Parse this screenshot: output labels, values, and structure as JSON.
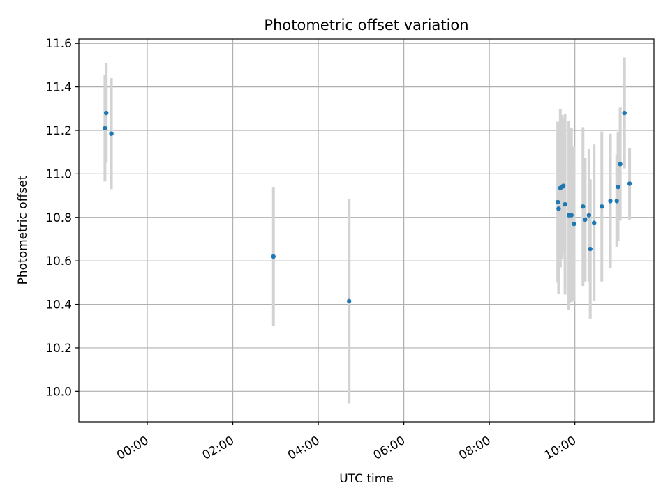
{
  "chart_data": {
    "type": "scatter",
    "title": "Photometric offset variation",
    "xlabel": "UTC time",
    "ylabel": "Photometric offset",
    "xlim_hours": [
      -1.6,
      11.85
    ],
    "ylim": [
      9.86,
      11.62
    ],
    "x_ticks": [
      {
        "hour": 0,
        "label": "00:00"
      },
      {
        "hour": 2,
        "label": "02:00"
      },
      {
        "hour": 4,
        "label": "04:00"
      },
      {
        "hour": 6,
        "label": "06:00"
      },
      {
        "hour": 8,
        "label": "08:00"
      },
      {
        "hour": 10,
        "label": "10:00"
      }
    ],
    "y_ticks": [
      {
        "value": 10.0,
        "label": "10.0"
      },
      {
        "value": 10.2,
        "label": "10.2"
      },
      {
        "value": 10.4,
        "label": "10.4"
      },
      {
        "value": 10.6,
        "label": "10.6"
      },
      {
        "value": 10.8,
        "label": "10.8"
      },
      {
        "value": 11.0,
        "label": "11.0"
      },
      {
        "value": 11.2,
        "label": "11.2"
      },
      {
        "value": 11.4,
        "label": "11.4"
      },
      {
        "value": 11.6,
        "label": "11.6"
      }
    ],
    "grid": true,
    "point_color": "#1f77b4",
    "errorbar_color": "#d3d3d3",
    "points": [
      {
        "x": -0.99,
        "y": 11.21,
        "err": 0.245
      },
      {
        "x": -0.96,
        "y": 11.28,
        "err": 0.23
      },
      {
        "x": -0.84,
        "y": 11.185,
        "err": 0.255
      },
      {
        "x": 2.95,
        "y": 10.62,
        "err": 0.32
      },
      {
        "x": 4.72,
        "y": 10.415,
        "err": 0.47
      },
      {
        "x": 9.6,
        "y": 10.87,
        "err": 0.37
      },
      {
        "x": 9.62,
        "y": 10.84,
        "err": 0.39
      },
      {
        "x": 9.66,
        "y": 10.935,
        "err": 0.365
      },
      {
        "x": 9.7,
        "y": 10.94,
        "err": 0.33
      },
      {
        "x": 9.73,
        "y": 10.945,
        "err": 0.31
      },
      {
        "x": 9.77,
        "y": 10.86,
        "err": 0.415
      },
      {
        "x": 9.86,
        "y": 10.81,
        "err": 0.435
      },
      {
        "x": 9.92,
        "y": 10.81,
        "err": 0.4
      },
      {
        "x": 9.98,
        "y": 10.77,
        "err": 0.355
      },
      {
        "x": 10.19,
        "y": 10.85,
        "err": 0.365
      },
      {
        "x": 10.24,
        "y": 10.79,
        "err": 0.285
      },
      {
        "x": 10.33,
        "y": 10.81,
        "err": 0.305
      },
      {
        "x": 10.36,
        "y": 10.655,
        "err": 0.32
      },
      {
        "x": 10.45,
        "y": 10.775,
        "err": 0.36
      },
      {
        "x": 10.63,
        "y": 10.85,
        "err": 0.345
      },
      {
        "x": 10.83,
        "y": 10.875,
        "err": 0.31
      },
      {
        "x": 10.98,
        "y": 10.875,
        "err": 0.21
      },
      {
        "x": 11.01,
        "y": 10.94,
        "err": 0.25
      },
      {
        "x": 11.06,
        "y": 11.045,
        "err": 0.26
      },
      {
        "x": 11.16,
        "y": 11.28,
        "err": 0.255
      },
      {
        "x": 11.28,
        "y": 10.955,
        "err": 0.165
      }
    ]
  }
}
